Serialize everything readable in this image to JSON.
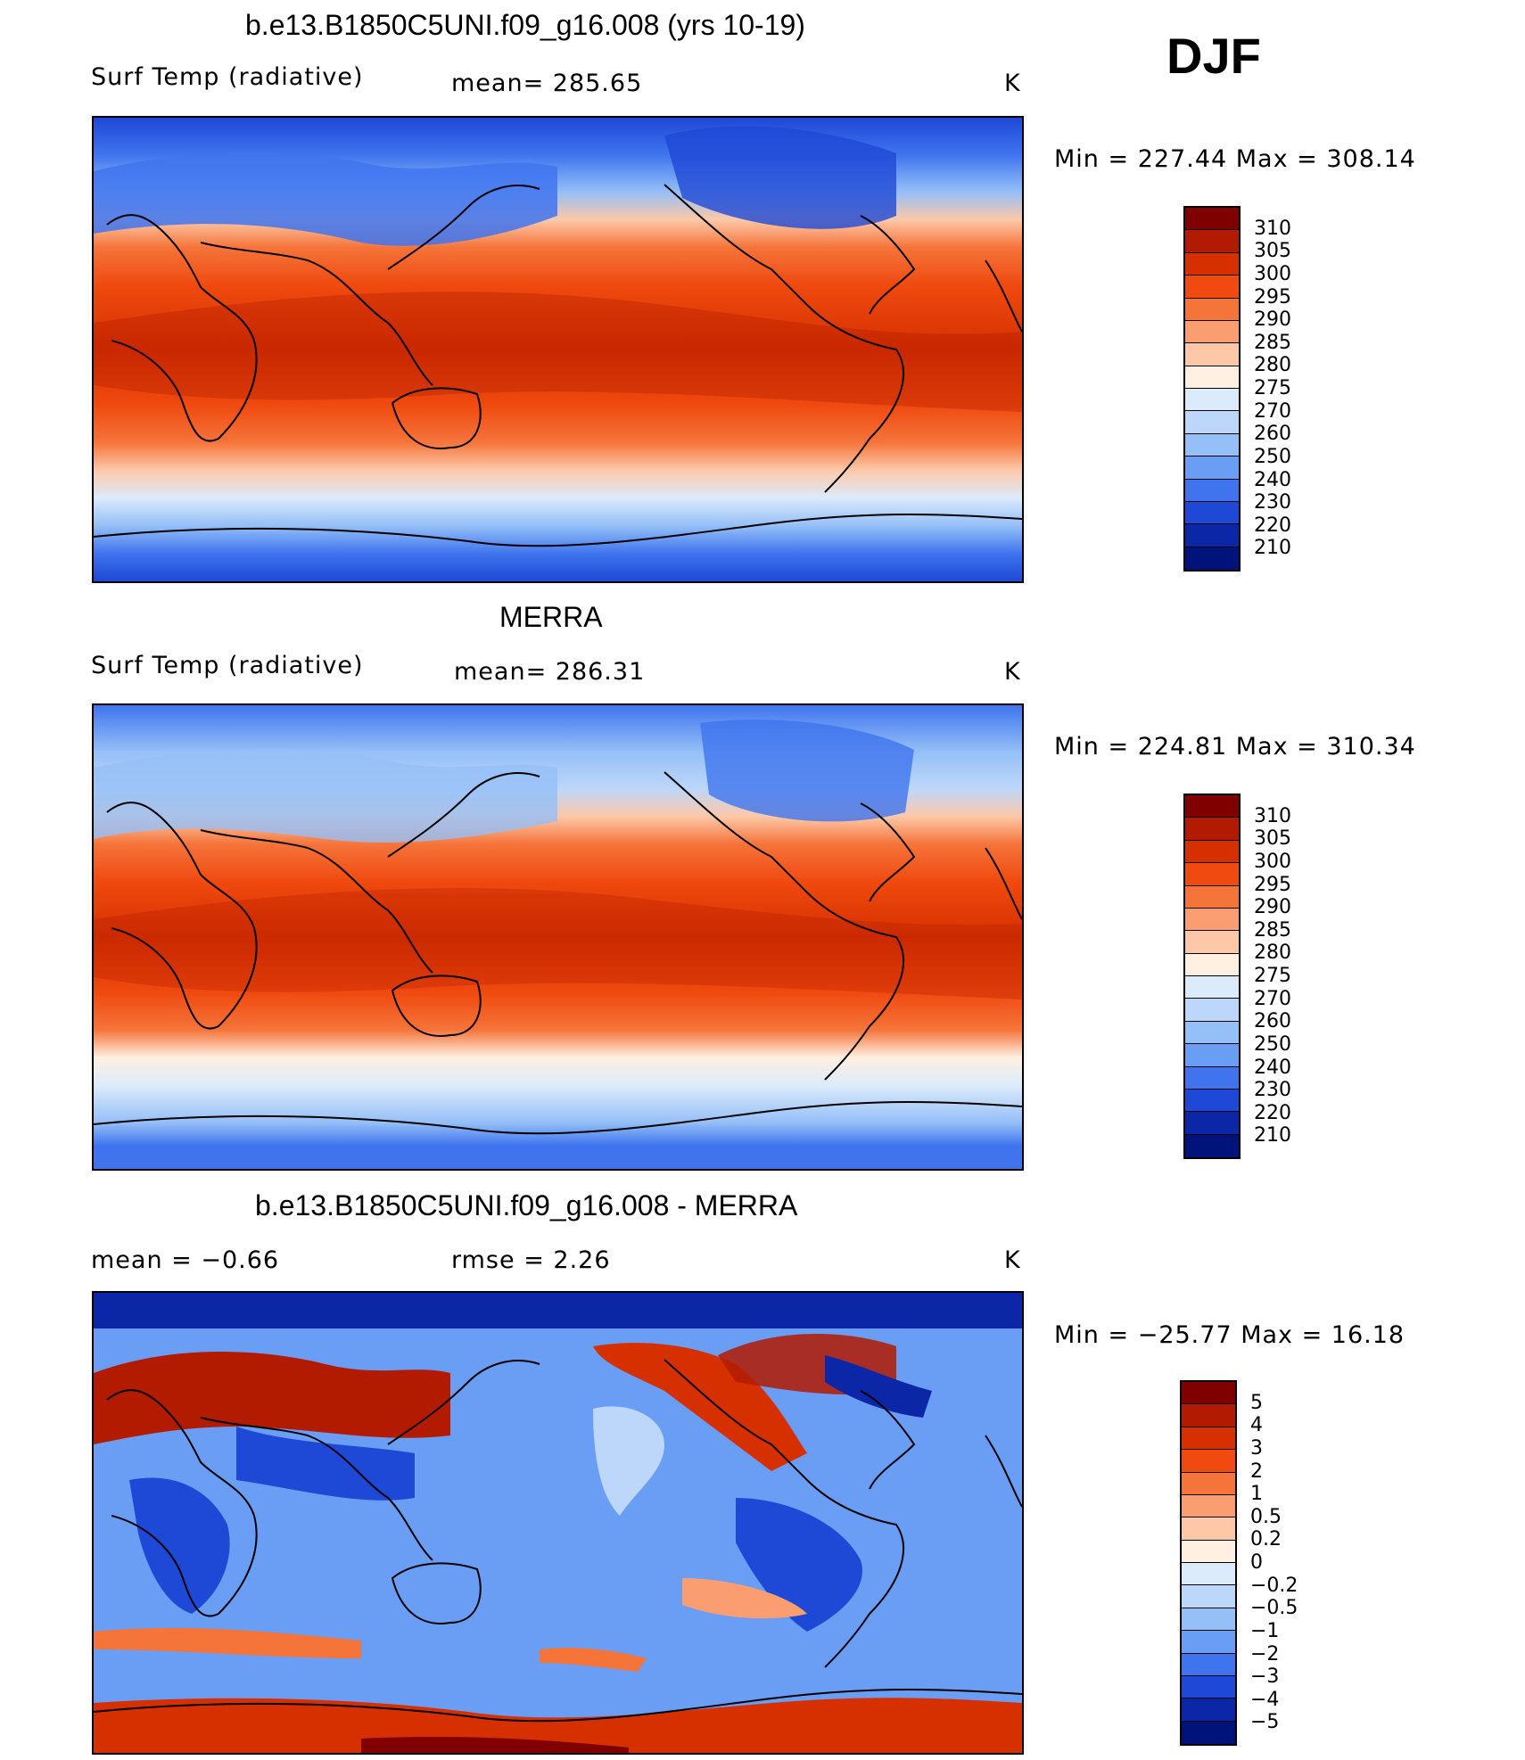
{
  "season": "DJF",
  "panels": [
    {
      "title": "b.e13.B1850C5UNI.f09_g16.008 (yrs 10-19)",
      "left_label": "Surf Temp (radiative)",
      "center_label": "mean= 285.65",
      "units": "K",
      "min_max": "Min = 227.44 Max = 308.14",
      "ticks": [
        "310",
        "305",
        "300",
        "295",
        "290",
        "285",
        "280",
        "275",
        "270",
        "260",
        "250",
        "240",
        "230",
        "220",
        "210"
      ]
    },
    {
      "title": "MERRA",
      "left_label": "Surf Temp (radiative)",
      "center_label": "mean= 286.31",
      "units": "K",
      "min_max": "Min = 224.81 Max = 310.34",
      "ticks": [
        "310",
        "305",
        "300",
        "295",
        "290",
        "285",
        "280",
        "275",
        "270",
        "260",
        "250",
        "240",
        "230",
        "220",
        "210"
      ]
    },
    {
      "title": "b.e13.B1850C5UNI.f09_g16.008 - MERRA",
      "left_label": "mean = −0.66",
      "center_label": "rmse = 2.26",
      "units": "K",
      "min_max": "Min = −25.77 Max = 16.18",
      "ticks": [
        "5",
        "4",
        "3",
        "2",
        "1",
        "0.5",
        "0.2",
        "0",
        "−0.2",
        "−0.5",
        "−1",
        "−2",
        "−3",
        "−4",
        "−5"
      ]
    }
  ],
  "colorbar_colors": [
    "#800000",
    "#b31b00",
    "#d63000",
    "#f04a10",
    "#f5743a",
    "#fa9e72",
    "#fdc8a8",
    "#fff0e2",
    "#dcebfb",
    "#bdd7fa",
    "#95bff7",
    "#6a9df4",
    "#3f74ee",
    "#1e48d6",
    "#0c26a8",
    "#00137a"
  ]
}
